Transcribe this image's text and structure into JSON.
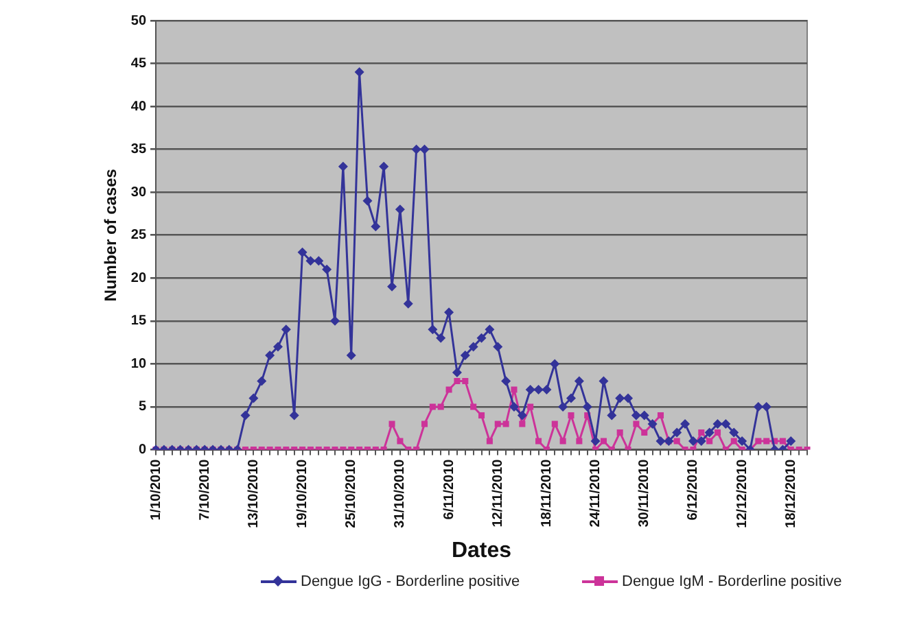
{
  "chart_data": {
    "type": "line",
    "xlabel": "Dates",
    "ylabel": "Number of cases",
    "categories": [
      "1/10/2010",
      null,
      null,
      null,
      null,
      null,
      "7/10/2010",
      null,
      null,
      null,
      null,
      null,
      "13/10/2010",
      null,
      null,
      null,
      null,
      null,
      "19/10/2010",
      null,
      null,
      null,
      null,
      null,
      "25/10/2010",
      null,
      null,
      null,
      null,
      null,
      "31/10/2010",
      null,
      null,
      null,
      null,
      null,
      "6/11/2010",
      null,
      null,
      null,
      null,
      null,
      "12/11/2010",
      null,
      null,
      null,
      null,
      null,
      "18/11/2010",
      null,
      null,
      null,
      null,
      null,
      "24/11/2010",
      null,
      null,
      null,
      null,
      null,
      "30/11/2010",
      null,
      null,
      null,
      null,
      null,
      "6/12/2010",
      null,
      null,
      null,
      null,
      null,
      "12/12/2010",
      null,
      null,
      null,
      null,
      null,
      "18/12/2010",
      null,
      null
    ],
    "series": [
      {
        "name": "Dengue IgG - Borderline positive",
        "color": "#333399",
        "marker": "diamond",
        "values": [
          0,
          0,
          0,
          0,
          0,
          0,
          0,
          0,
          0,
          0,
          0,
          4,
          6,
          8,
          11,
          12,
          14,
          4,
          23,
          22,
          22,
          21,
          15,
          33,
          11,
          44,
          29,
          26,
          33,
          19,
          28,
          17,
          35,
          35,
          14,
          13,
          16,
          9,
          11,
          12,
          13,
          14,
          12,
          8,
          5,
          4,
          7,
          7,
          7,
          10,
          5,
          6,
          8,
          5,
          1,
          8,
          4,
          6,
          6,
          4,
          4,
          3,
          1,
          1,
          2,
          3,
          1,
          1,
          2,
          3,
          3,
          2,
          1,
          0,
          5,
          5,
          0,
          0,
          1,
          null,
          null
        ]
      },
      {
        "name": "Dengue IgM - Borderline positive",
        "color": "#cc3399",
        "marker": "square",
        "values": [
          0,
          0,
          0,
          0,
          0,
          0,
          0,
          0,
          0,
          0,
          0,
          0,
          0,
          0,
          0,
          0,
          0,
          0,
          0,
          0,
          0,
          0,
          0,
          0,
          0,
          0,
          0,
          0,
          0,
          3,
          1,
          0,
          0,
          3,
          5,
          5,
          7,
          8,
          8,
          5,
          4,
          1,
          3,
          3,
          7,
          3,
          5,
          1,
          0,
          3,
          1,
          4,
          1,
          4,
          0,
          1,
          0,
          2,
          0,
          3,
          2,
          3,
          4,
          1,
          1,
          0,
          0,
          2,
          1,
          2,
          0,
          1,
          0,
          0,
          1,
          1,
          1,
          1,
          0,
          0,
          0
        ]
      }
    ],
    "ylim": [
      0,
      50
    ],
    "yticks": [
      0,
      5,
      10,
      15,
      20,
      25,
      30,
      35,
      40,
      45,
      50
    ],
    "grid": "y",
    "legend": "bottom",
    "line_style": "solid"
  }
}
